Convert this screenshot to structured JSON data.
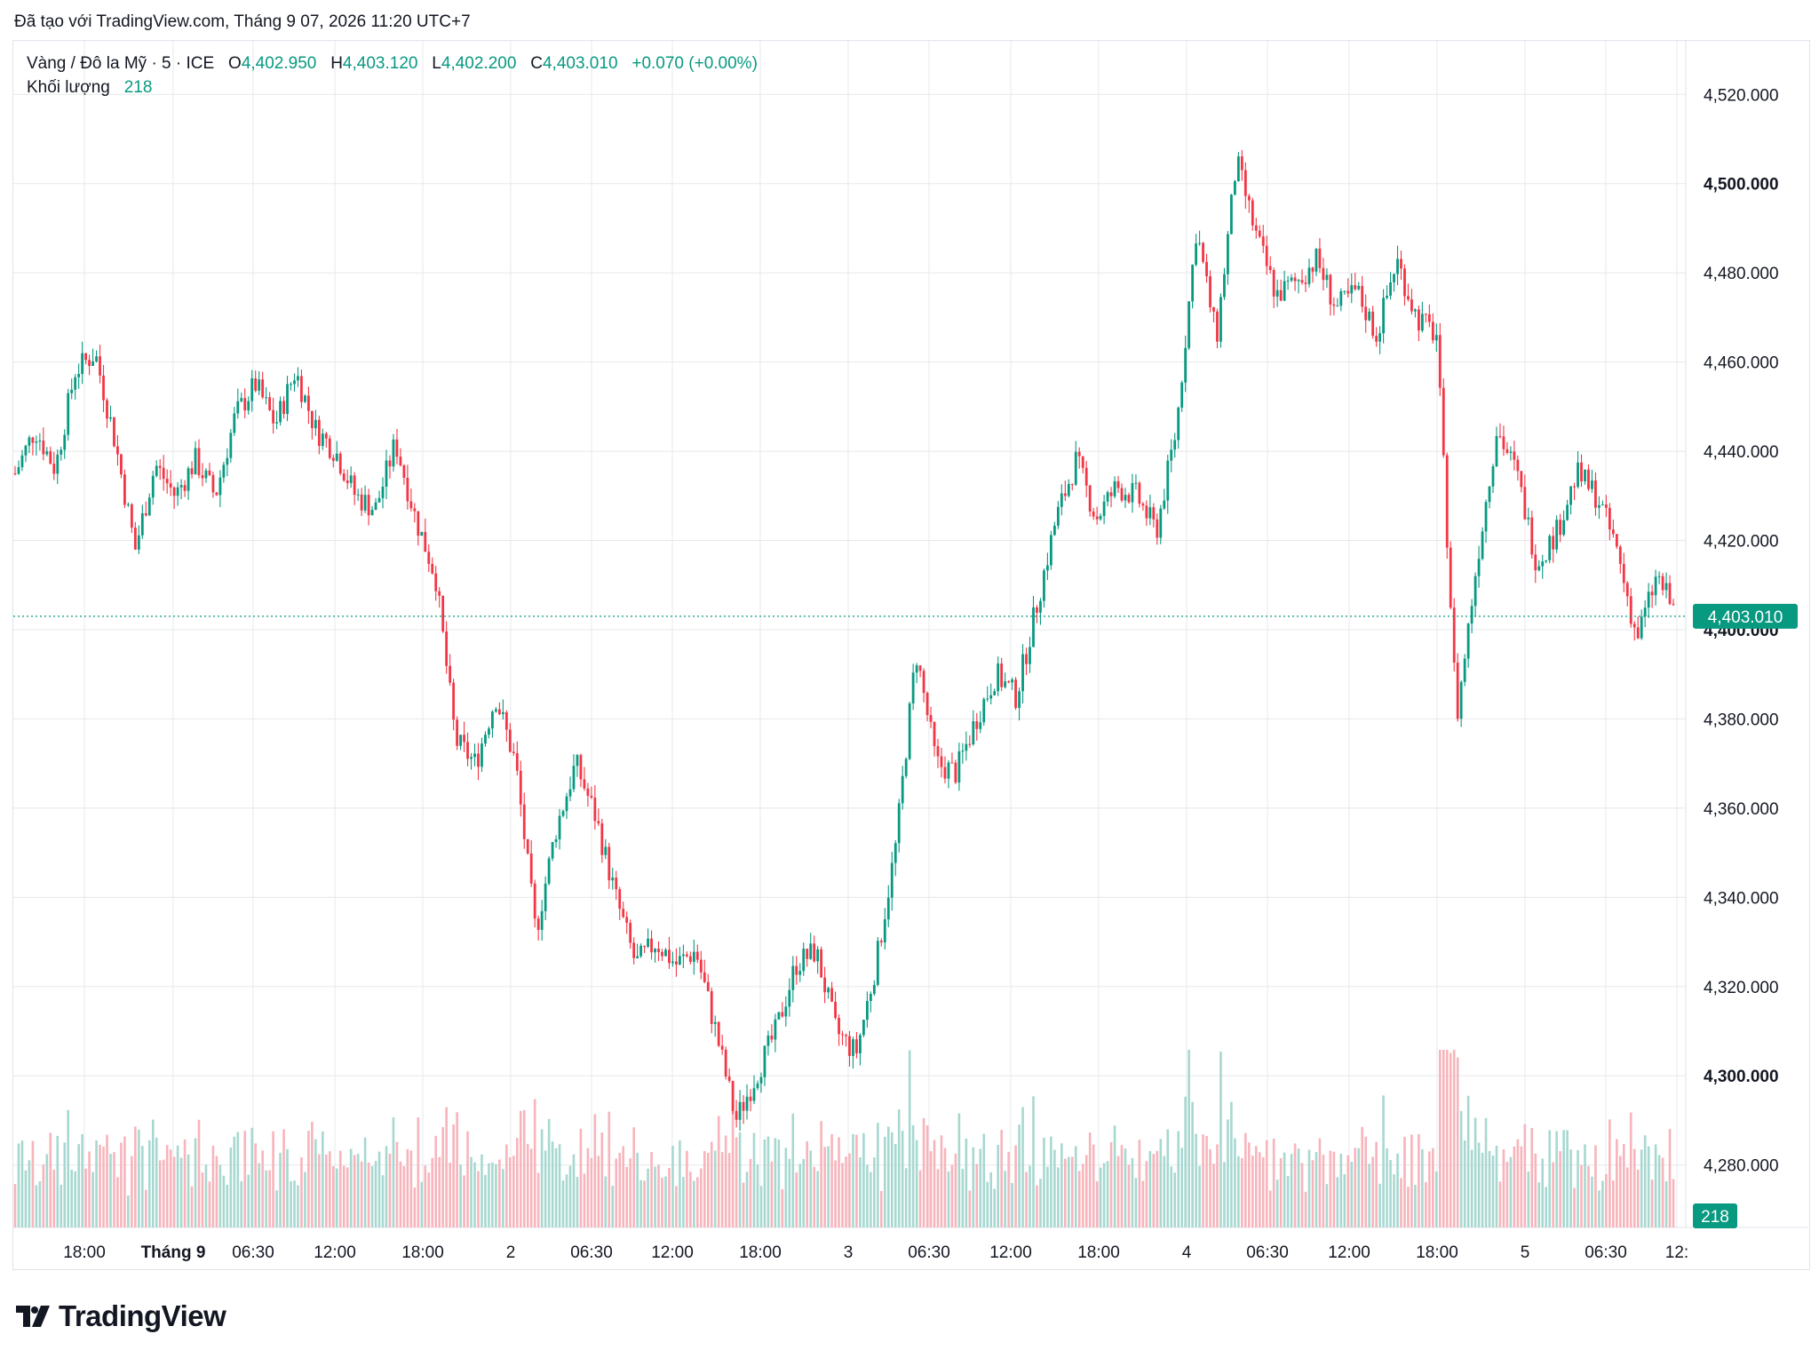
{
  "caption": "Đã tạo với TradingView.com, Tháng 9 07, 2026 11:20 UTC+7",
  "legend": {
    "symbol": "Vàng / Đô la Mỹ · 5 · ICE",
    "o_label": "O",
    "o_value": "4,402.950",
    "h_label": "H",
    "h_value": "4,403.120",
    "l_label": "L",
    "l_value": "4,402.200",
    "c_label": "C",
    "c_value": "4,403.010",
    "change": "+0.070 (+0.00%)",
    "volume_label": "Khối lượng",
    "volume_value": "218"
  },
  "brand": {
    "name": "TradingView"
  },
  "colors": {
    "up": "#089981",
    "down": "#f23645",
    "up_vol": "#a7d8d0",
    "down_vol": "#f7b4bb",
    "grid": "#e6e8ec",
    "text": "#131722"
  },
  "chart_data": {
    "type": "candlestick",
    "title": "Vàng / Đô la Mỹ · 5 · ICE",
    "x_tick_labels": [
      "18:00",
      "Tháng 9",
      "06:30",
      "12:00",
      "18:00",
      "2",
      "06:30",
      "12:00",
      "18:00",
      "3",
      "06:30",
      "12:00",
      "18:00",
      "4",
      "06:30",
      "12:00",
      "18:00",
      "5",
      "06:30",
      "12:"
    ],
    "y_tick_labels": [
      "4,280.000",
      "4,300.000",
      "4,320.000",
      "4,340.000",
      "4,360.000",
      "4,380.000",
      "4,400.000",
      "4,420.000",
      "4,440.000",
      "4,460.000",
      "4,480.000",
      "4,500.000",
      "4,520.000"
    ],
    "ylim": [
      4266,
      4532
    ],
    "last_price": 4403.01,
    "last_price_label": "4,403.010",
    "last_volume": 218,
    "last_volume_label": "218",
    "price_path": [
      {
        "x": "start",
        "y": 4435
      },
      {
        "x": "",
        "y": 4445
      },
      {
        "x": "",
        "y": 4436
      },
      {
        "x": "",
        "y": 4458
      },
      {
        "x": "",
        "y": 4462
      },
      {
        "x": "",
        "y": 4442
      },
      {
        "x": "",
        "y": 4418
      },
      {
        "x": "",
        "y": 4437
      },
      {
        "x": "",
        "y": 4430
      },
      {
        "x": "",
        "y": 4438
      },
      {
        "x": "",
        "y": 4430
      },
      {
        "x": "",
        "y": 4448
      },
      {
        "x": "",
        "y": 4455
      },
      {
        "x": "",
        "y": 4446
      },
      {
        "x": "",
        "y": 4458
      },
      {
        "x": "",
        "y": 4445
      },
      {
        "x": "",
        "y": 4440
      },
      {
        "x": "",
        "y": 4430
      },
      {
        "x": "",
        "y": 4427
      },
      {
        "x": "",
        "y": 4442
      },
      {
        "x": "",
        "y": 4425
      },
      {
        "x": "",
        "y": 4412
      },
      {
        "x": "",
        "y": 4375
      },
      {
        "x": "",
        "y": 4370
      },
      {
        "x": "",
        "y": 4385
      },
      {
        "x": "",
        "y": 4370
      },
      {
        "x": "",
        "y": 4332
      },
      {
        "x": "",
        "y": 4355
      },
      {
        "x": "",
        "y": 4370
      },
      {
        "x": "",
        "y": 4358
      },
      {
        "x": "",
        "y": 4340
      },
      {
        "x": "",
        "y": 4325
      },
      {
        "x": "",
        "y": 4330
      },
      {
        "x": "",
        "y": 4325
      },
      {
        "x": "",
        "y": 4328
      },
      {
        "x": "",
        "y": 4310
      },
      {
        "x": "",
        "y": 4290
      },
      {
        "x": "",
        "y": 4300
      },
      {
        "x": "",
        "y": 4310
      },
      {
        "x": "",
        "y": 4325
      },
      {
        "x": "",
        "y": 4328
      },
      {
        "x": "",
        "y": 4310
      },
      {
        "x": "",
        "y": 4305
      },
      {
        "x": "",
        "y": 4325
      },
      {
        "x": "",
        "y": 4352
      },
      {
        "x": "",
        "y": 4395
      },
      {
        "x": "",
        "y": 4370
      },
      {
        "x": "",
        "y": 4368
      },
      {
        "x": "",
        "y": 4380
      },
      {
        "x": "",
        "y": 4390
      },
      {
        "x": "",
        "y": 4385
      },
      {
        "x": "",
        "y": 4405
      },
      {
        "x": "",
        "y": 4425
      },
      {
        "x": "",
        "y": 4438
      },
      {
        "x": "",
        "y": 4425
      },
      {
        "x": "",
        "y": 4432
      },
      {
        "x": "",
        "y": 4430
      },
      {
        "x": "",
        "y": 4422
      },
      {
        "x": "",
        "y": 4445
      },
      {
        "x": "",
        "y": 4490
      },
      {
        "x": "",
        "y": 4465
      },
      {
        "x": "",
        "y": 4505
      },
      {
        "x": "",
        "y": 4488
      },
      {
        "x": "",
        "y": 4475
      },
      {
        "x": "",
        "y": 4478
      },
      {
        "x": "",
        "y": 4483
      },
      {
        "x": "",
        "y": 4472
      },
      {
        "x": "",
        "y": 4476
      },
      {
        "x": "",
        "y": 4466
      },
      {
        "x": "",
        "y": 4483
      },
      {
        "x": "",
        "y": 4470
      },
      {
        "x": "",
        "y": 4466
      },
      {
        "x": "",
        "y": 4380
      },
      {
        "x": "",
        "y": 4415
      },
      {
        "x": "",
        "y": 4445
      },
      {
        "x": "",
        "y": 4435
      },
      {
        "x": "",
        "y": 4415
      },
      {
        "x": "",
        "y": 4422
      },
      {
        "x": "",
        "y": 4435
      },
      {
        "x": "",
        "y": 4430
      },
      {
        "x": "",
        "y": 4418
      },
      {
        "x": "",
        "y": 4398
      },
      {
        "x": "",
        "y": 4412
      },
      {
        "x": "end",
        "y": 4403
      }
    ]
  }
}
